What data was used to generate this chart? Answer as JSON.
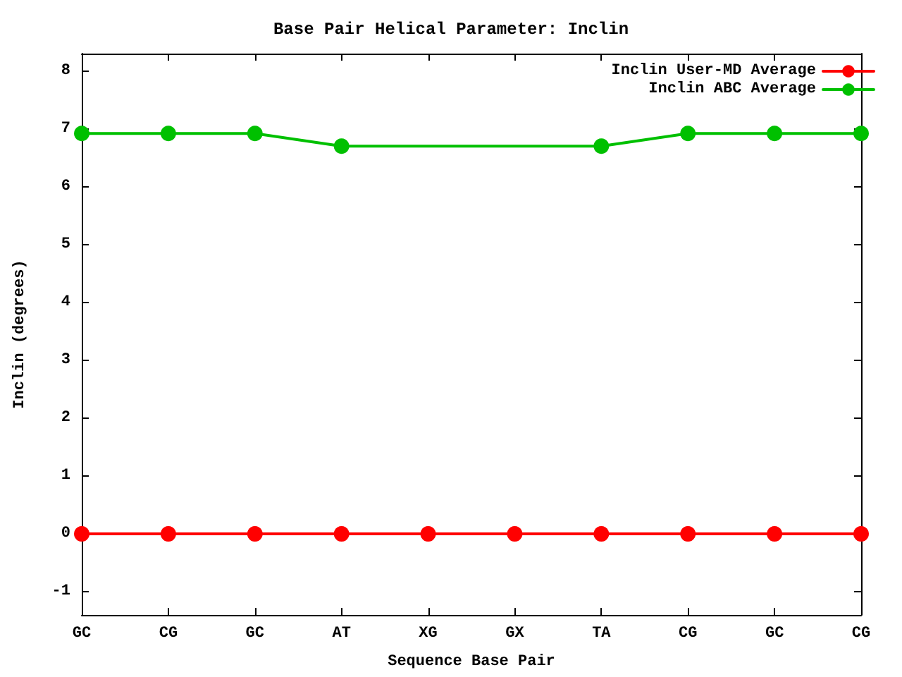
{
  "chart_data": {
    "type": "line",
    "title": "Base Pair Helical Parameter: Inclin",
    "xlabel": "Sequence Base Pair",
    "ylabel": "Inclin (degrees)",
    "categories": [
      "GC",
      "CG",
      "GC",
      "AT",
      "XG",
      "GX",
      "TA",
      "CG",
      "GC",
      "CG"
    ],
    "series": [
      {
        "name": "Inclin User-MD Average",
        "color": "#ff0000",
        "values": [
          0,
          0,
          0,
          0,
          0,
          0,
          0,
          0,
          0,
          0
        ]
      },
      {
        "name": "Inclin ABC Average",
        "color": "#00c000",
        "values": [
          6.92,
          6.92,
          6.92,
          6.7,
          null,
          null,
          6.7,
          6.92,
          6.92,
          6.92
        ]
      }
    ],
    "ylim": [
      -1.4,
      8.3
    ],
    "yticks": [
      -1,
      0,
      1,
      2,
      3,
      4,
      5,
      6,
      7,
      8
    ],
    "grid": false,
    "legend": "top right",
    "marker": "circle",
    "line_style": "solid"
  }
}
